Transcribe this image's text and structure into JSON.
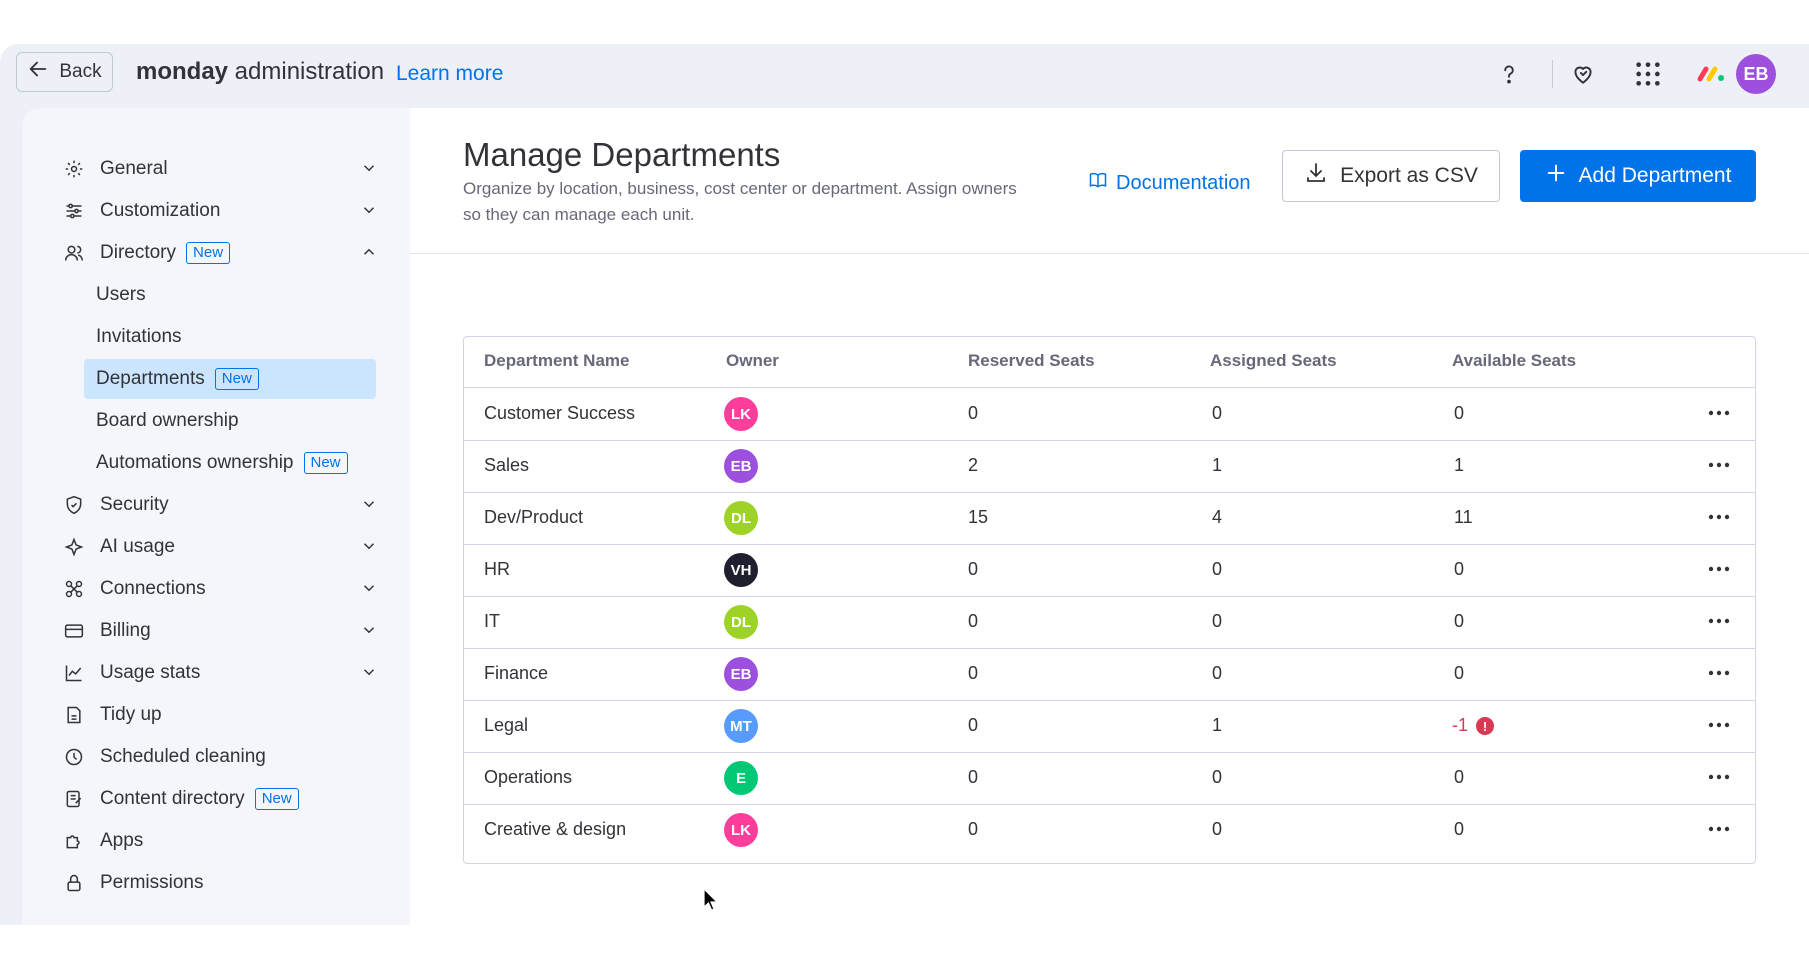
{
  "topbar": {
    "back_label": "Back",
    "brand_bold": "monday",
    "brand_rest": " administration",
    "learn_more": "Learn more",
    "avatar_initials": "EB"
  },
  "sidebar": {
    "items": [
      {
        "label": "General",
        "icon": "gear-icon",
        "chevron": "down"
      },
      {
        "label": "Customization",
        "icon": "sliders-icon",
        "chevron": "down"
      },
      {
        "label": "Directory",
        "icon": "users-icon",
        "chevron": "up",
        "badge": "New"
      },
      {
        "label": "Security",
        "icon": "shield-icon",
        "chevron": "down"
      },
      {
        "label": "AI usage",
        "icon": "sparkle-icon",
        "chevron": "down"
      },
      {
        "label": "Connections",
        "icon": "connections-icon",
        "chevron": "down"
      },
      {
        "label": "Billing",
        "icon": "credit-card-icon",
        "chevron": "down"
      },
      {
        "label": "Usage stats",
        "icon": "chart-line-icon",
        "chevron": "down"
      },
      {
        "label": "Tidy up",
        "icon": "broom-icon"
      },
      {
        "label": "Scheduled cleaning",
        "icon": "clock-icon"
      },
      {
        "label": "Content directory",
        "icon": "content-directory-icon",
        "badge": "New"
      },
      {
        "label": "Apps",
        "icon": "puzzle-icon"
      },
      {
        "label": "Permissions",
        "icon": "lock-icon"
      }
    ],
    "directory_sub": [
      {
        "label": "Users"
      },
      {
        "label": "Invitations"
      },
      {
        "label": "Departments",
        "badge": "New",
        "active": true
      },
      {
        "label": "Board ownership"
      },
      {
        "label": "Automations ownership",
        "badge": "New"
      }
    ]
  },
  "main": {
    "title": "Manage Departments",
    "description": "Organize by location, business, cost center or department. Assign owners so they can manage each unit.",
    "documentation": "Documentation",
    "export_label": "Export as CSV",
    "add_label": "Add Department"
  },
  "table": {
    "headers": [
      "Department Name",
      "Owner",
      "Reserved Seats",
      "Assigned Seats",
      "Available Seats"
    ],
    "rows": [
      {
        "name": "Customer Success",
        "owner": "LK",
        "owner_color": "#ff3d9a",
        "reserved": "0",
        "assigned": "0",
        "available": "0"
      },
      {
        "name": "Sales",
        "owner": "EB",
        "owner_color": "#9d50dd",
        "reserved": "2",
        "assigned": "1",
        "available": "1"
      },
      {
        "name": "Dev/Product",
        "owner": "DL",
        "owner_color": "#9cd326",
        "reserved": "15",
        "assigned": "4",
        "available": "11"
      },
      {
        "name": "HR",
        "owner": "VH",
        "owner_color": "#1f1f2e",
        "reserved": "0",
        "assigned": "0",
        "available": "0"
      },
      {
        "name": "IT",
        "owner": "DL",
        "owner_color": "#9cd326",
        "reserved": "0",
        "assigned": "0",
        "available": "0"
      },
      {
        "name": "Finance",
        "owner": "EB",
        "owner_color": "#9d50dd",
        "reserved": "0",
        "assigned": "0",
        "available": "0"
      },
      {
        "name": "Legal",
        "owner": "MT",
        "owner_color": "#579bfc",
        "reserved": "0",
        "assigned": "1",
        "available": "-1",
        "warning": true
      },
      {
        "name": "Operations",
        "owner": "E",
        "owner_color": "#00c875",
        "reserved": "0",
        "assigned": "0",
        "available": "0"
      },
      {
        "name": "Creative & design",
        "owner": "LK",
        "owner_color": "#ff3d9a",
        "reserved": "0",
        "assigned": "0",
        "available": "0"
      }
    ]
  },
  "colors": {
    "accent": "#0073ea",
    "active_bg": "#cce5ff",
    "negative": "#d83a52"
  }
}
